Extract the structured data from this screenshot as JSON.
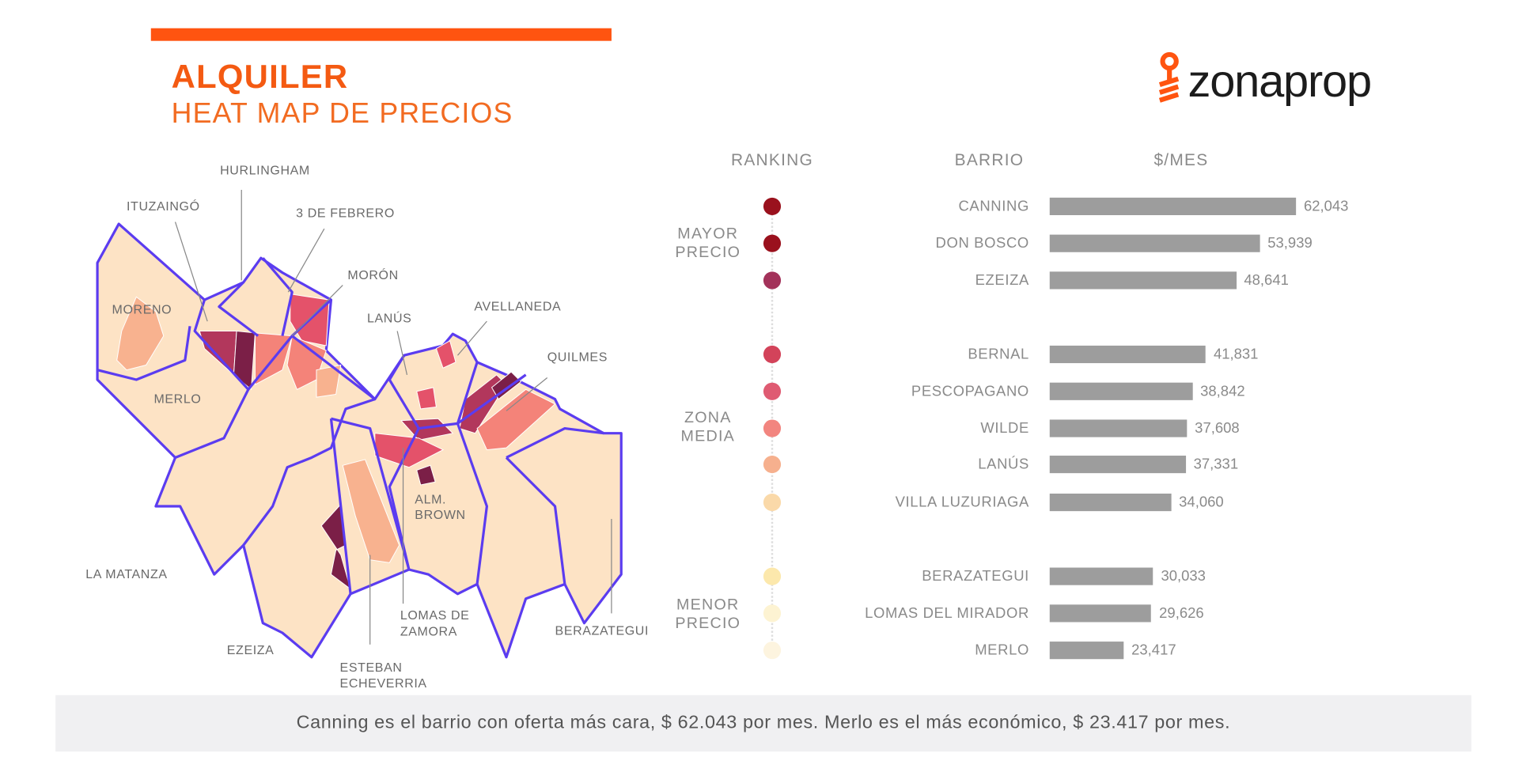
{
  "header": {
    "title": "ALQUILER",
    "subtitle": "HEAT MAP DE PRECIOS",
    "logo_text": "zonaprop",
    "accent_color": "#ff5410"
  },
  "map": {
    "labels": {
      "hurlingham": "HURLINGHAM",
      "ituzaingo": "ITUZAINGÓ",
      "tres_de_febrero": "3 DE FEBRERO",
      "moron": "MORÓN",
      "moreno": "MORENO",
      "lanus": "LANÚS",
      "avellaneda": "AVELLANEDA",
      "quilmes": "QUILMES",
      "merlo": "MERLO",
      "alm_brown_1": "ALM.",
      "alm_brown_2": "BROWN",
      "la_matanza": "LA MATANZA",
      "ezeiza": "EZEIZA",
      "esteban_1": "ESTEBAN",
      "esteban_2": "ECHEVERRIA",
      "lomas_1": "LOMAS DE",
      "lomas_2": "ZAMORA",
      "berazategui": "BERAZATEGUI"
    },
    "colors": {
      "base": "#fde3c5",
      "border": "#5b3cf0",
      "dark": "#7b1f47",
      "wine": "#b2375c",
      "pink": "#e4526a",
      "salmon": "#f48379",
      "peach": "#f8b28f"
    }
  },
  "chart_data": {
    "type": "bar",
    "orientation": "horizontal",
    "headers": {
      "ranking": "RANKING",
      "barrio": "BARRIO",
      "price": "$/MES"
    },
    "groups": [
      {
        "label_1": "MAYOR",
        "label_2": "PRECIO"
      },
      {
        "label_1": "ZONA",
        "label_2": "MEDIA"
      },
      {
        "label_1": "MENOR",
        "label_2": "PRECIO"
      }
    ],
    "categories": [
      "CANNING",
      "DON BOSCO",
      "EZEIZA",
      "BERNAL",
      "PESCOPAGANO",
      "WILDE",
      "LANÚS",
      "VILLA LUZURIAGA",
      "BERAZATEGUI",
      "LOMAS DEL MIRADOR",
      "MERLO"
    ],
    "values": [
      62043,
      53939,
      48641,
      41831,
      38842,
      37608,
      37331,
      34060,
      30033,
      29626,
      23417
    ],
    "value_labels": [
      "62,043",
      "53,939",
      "48,641",
      "41,831",
      "38,842",
      "37,608",
      "37,331",
      "34,060",
      "30,033",
      "29,626",
      "23,417"
    ],
    "rank_colors": [
      "#9a111d",
      "#9a111d",
      "#a3325a",
      "#d3435a",
      "#df5b72",
      "#f2857f",
      "#f6b08e",
      "#fad9a9",
      "#fce8ac",
      "#fdf3d2",
      "#fdf4df"
    ],
    "bar_color": "#9d9d9d"
  },
  "footer": {
    "text": "Canning es el barrio con oferta más cara, $ 62.043 por mes. Merlo es el más económico, $ 23.417 por mes."
  }
}
